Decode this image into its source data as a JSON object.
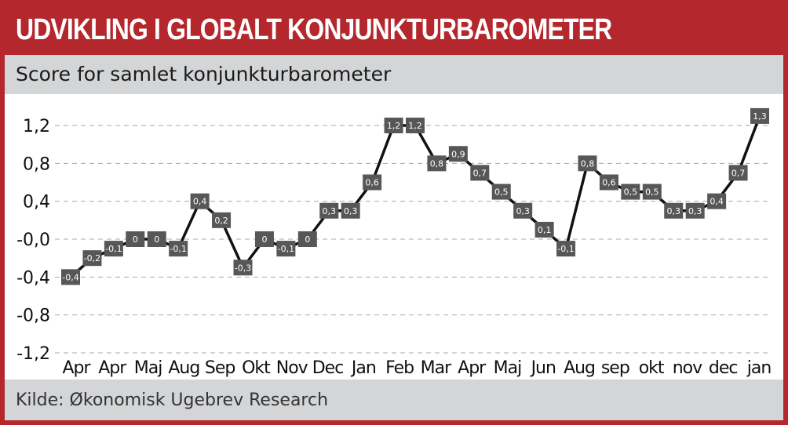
{
  "header": {
    "title": "UDVIKLING I GLOBALT KONJUNKTURBAROMETER"
  },
  "subheader": {
    "title": "Score for samlet konjunkturbarometer"
  },
  "footer": {
    "source": "Kilde: Økonomisk Ugebrev Research"
  },
  "colors": {
    "brand": "#b3272d",
    "band": "#d4d5d7",
    "line": "#111111",
    "marker": "#575757"
  },
  "chart_data": {
    "type": "line",
    "title": "",
    "xlabel": "",
    "ylabel": "",
    "ylim": [
      -1.2,
      1.2
    ],
    "yticks": [
      1.2,
      0.8,
      0.4,
      0.0,
      -0.4,
      -0.8,
      -1.2
    ],
    "ytick_labels": [
      "1,2",
      "0,8",
      "0,4",
      "-0,0",
      "-0,4",
      "-0,8",
      "-1,2"
    ],
    "xtick_labels": [
      "Apr",
      "Apr",
      "Maj",
      "Aug",
      "Sep",
      "Okt",
      "Nov",
      "Dec",
      "Jan",
      "Feb",
      "Mar",
      "Apr",
      "Maj",
      "Jun",
      "Aug",
      "sep",
      "okt",
      "nov",
      "dec",
      "jan"
    ],
    "grid": "horizontal dashed",
    "legend": "none",
    "values": [
      -0.4,
      -0.2,
      -0.1,
      0,
      0,
      -0.1,
      0.4,
      0.2,
      -0.3,
      0,
      -0.1,
      0,
      0.3,
      0.3,
      0.6,
      1.2,
      1.2,
      0.8,
      0.9,
      0.7,
      0.5,
      0.3,
      0.1,
      -0.1,
      0.8,
      0.6,
      0.5,
      0.5,
      0.3,
      0.3,
      0.4,
      0.7,
      1.3
    ],
    "data_labels": [
      "-0,4",
      "-0,2",
      "-0,1",
      "0",
      "0",
      "-0,1",
      "0,4",
      "0,2",
      "-0,3",
      "0",
      "-0,1",
      "0",
      "0,3",
      "0,3",
      "0,6",
      "1,2",
      "1,2",
      "0,8",
      "0,9",
      "0,7",
      "0,5",
      "0,3",
      "0,1",
      "-0,1",
      "0,8",
      "0,6",
      "0,5",
      "0,5",
      "0,3",
      "0,3",
      "0,4",
      "0,7",
      "1,3"
    ]
  }
}
